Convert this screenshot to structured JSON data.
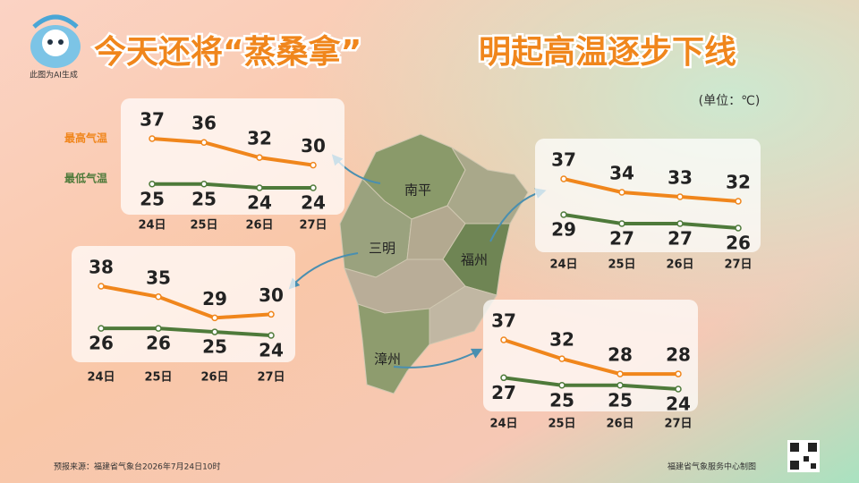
{
  "header": {
    "title": [
      "今天还将“蒸桑拿”",
      "明起高温逐步下线"
    ],
    "note": "此图为AI生成",
    "unit": "(单位：℃)"
  },
  "footer": {
    "source": "预报来源：福建省气象台2026年7月24日10时",
    "credit": "福建省气象服务中心制图"
  },
  "chart_data": [
    {
      "type": "line",
      "title": "南平",
      "categories": [
        "24日",
        "25日",
        "26日",
        "27日"
      ],
      "series": [
        {
          "name": "最高气温",
          "color": "#f0861c",
          "values": [
            37,
            36,
            32,
            30
          ]
        },
        {
          "name": "最低气温",
          "color": "#4e7a3a",
          "values": [
            25,
            25,
            24,
            24
          ]
        }
      ]
    },
    {
      "type": "line",
      "title": "三明",
      "categories": [
        "24日",
        "25日",
        "26日",
        "27日"
      ],
      "series": [
        {
          "color": "#f0861c",
          "values": [
            38,
            35,
            29,
            30
          ]
        },
        {
          "color": "#4e7a3a",
          "values": [
            26,
            26,
            25,
            24
          ]
        }
      ]
    },
    {
      "type": "line",
      "title": "福州",
      "categories": [
        "24日",
        "25日",
        "26日",
        "27日"
      ],
      "series": [
        {
          "color": "#f0861c",
          "values": [
            37,
            34,
            33,
            32
          ]
        },
        {
          "color": "#4e7a3a",
          "values": [
            29,
            27,
            27,
            26
          ]
        }
      ]
    },
    {
      "type": "line",
      "title": "漳州",
      "categories": [
        "24日",
        "25日",
        "26日",
        "27日"
      ],
      "series": [
        {
          "color": "#f0861c",
          "values": [
            37,
            32,
            28,
            28
          ]
        },
        {
          "color": "#4e7a3a",
          "values": [
            27,
            25,
            25,
            24
          ]
        }
      ]
    }
  ]
}
